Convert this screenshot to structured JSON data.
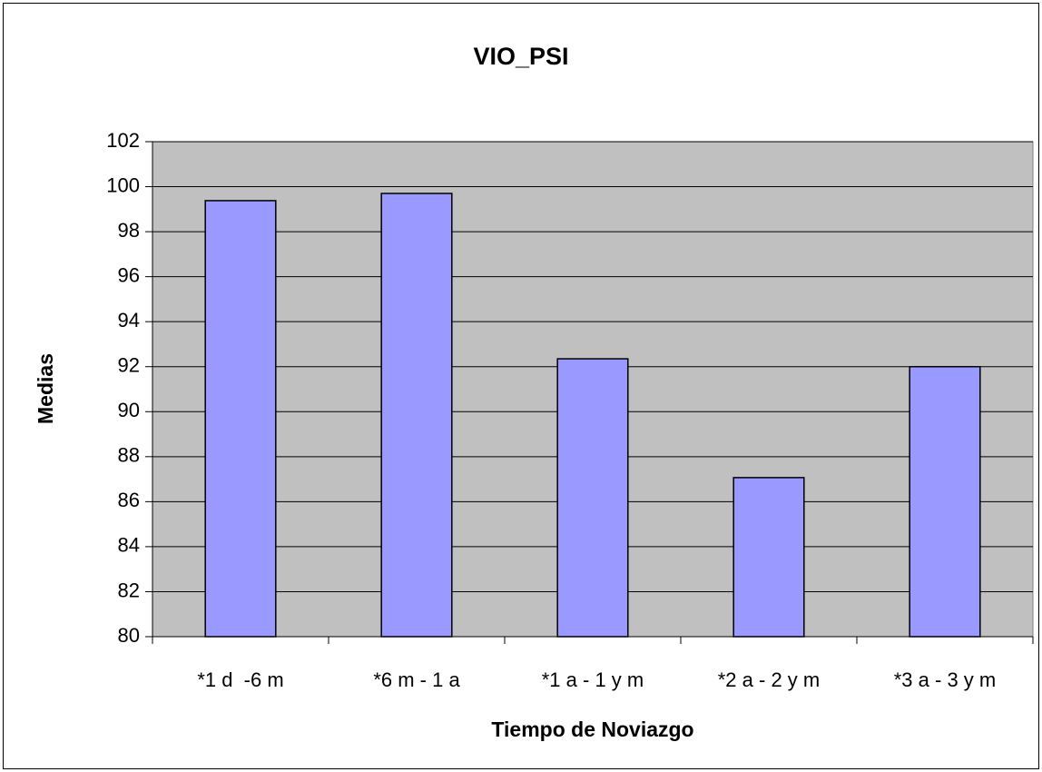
{
  "chart_data": {
    "type": "bar",
    "title": "VIO_PSI",
    "x_label": "Tiempo de Noviazgo",
    "y_label": "Medias",
    "categories": [
      "*1 d  -6 m",
      "*6 m - 1 a",
      "*1 a - 1 y m",
      "*2 a - 2 y m",
      "*3 a - 3 y m"
    ],
    "values": [
      99.38,
      99.7,
      92.35,
      87.07,
      92.0
    ],
    "color": "#9999ff",
    "ylim": [
      80,
      102
    ],
    "yticks": [
      80,
      82,
      84,
      86,
      88,
      90,
      92,
      94,
      96,
      98,
      100,
      102
    ],
    "grid": true
  }
}
